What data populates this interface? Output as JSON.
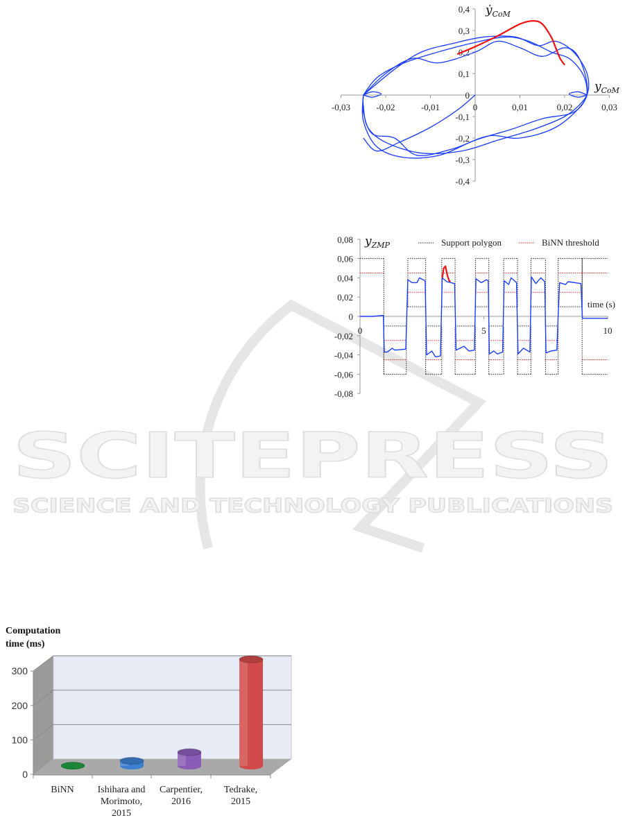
{
  "watermark": {
    "title": "SCITEPRESS",
    "subtitle": "SCIENCE AND TECHNOLOGY PUBLICATIONS"
  },
  "chart_data": [
    {
      "type": "line",
      "xlabel": {
        "base": "y",
        "sub": "CoM"
      },
      "ylabel": {
        "base": "ẏ",
        "sub": "CoM"
      },
      "xlim": [
        -0.03,
        0.03
      ],
      "ylim": [
        -0.4,
        0.4
      ],
      "xticks": [
        -0.03,
        -0.02,
        -0.01,
        0,
        0.01,
        0.02,
        0.03
      ],
      "xtick_labels": [
        "-0,03",
        "-0,02",
        "-0,01",
        "0",
        "0,01",
        "0,02",
        "0,03"
      ],
      "yticks": [
        0.4,
        0.3,
        0.2,
        0.1,
        0,
        -0.1,
        -0.2,
        -0.3,
        -0.4
      ],
      "ytick_labels": [
        "0,4",
        "0,3",
        "0,2",
        "0,1",
        "0",
        "-0,1",
        "-0,2",
        "-0,3",
        "-0,4"
      ],
      "grid": false,
      "series": [
        {
          "color": "#1a3cff",
          "points": [
            [
              0,
              0
            ],
            [
              -0.004,
              -0.07
            ],
            [
              -0.01,
              -0.15
            ],
            [
              -0.017,
              -0.22
            ],
            [
              -0.022,
              -0.26
            ],
            [
              -0.025,
              -0.2
            ]
          ]
        },
        {
          "color": "#1a3cff",
          "points": [
            [
              -0.025,
              0
            ],
            [
              -0.022,
              0.08
            ],
            [
              -0.017,
              0.14
            ],
            [
              -0.01,
              0.19
            ],
            [
              0,
              0.245
            ],
            [
              0.007,
              0.27
            ],
            [
              0.012,
              0.25
            ],
            [
              0.017,
              0.2
            ],
            [
              0.021,
              0.17
            ],
            [
              0.024,
              0.1
            ],
            [
              0.025,
              0.02
            ],
            [
              0.024,
              -0.03
            ],
            [
              0.02,
              -0.1
            ],
            [
              0.013,
              -0.16
            ],
            [
              0.005,
              -0.21
            ],
            [
              -0.003,
              -0.26
            ],
            [
              -0.012,
              -0.27
            ],
            [
              -0.02,
              -0.22
            ],
            [
              -0.024,
              -0.15
            ],
            [
              -0.025,
              -0.05
            ],
            [
              -0.025,
              0
            ]
          ]
        },
        {
          "color": "#1a3cff",
          "points": [
            [
              -0.025,
              0
            ],
            [
              -0.02,
              0.1
            ],
            [
              -0.014,
              0.17
            ],
            [
              -0.008,
              0.15
            ],
            [
              0,
              0.2
            ],
            [
              0.005,
              0.25
            ],
            [
              0.01,
              0.22
            ],
            [
              0.015,
              0.18
            ],
            [
              0.02,
              0.22
            ],
            [
              0.023,
              0.18
            ],
            [
              0.025,
              0.05
            ],
            [
              0.024,
              -0.04
            ],
            [
              0.018,
              -0.15
            ],
            [
              0.01,
              -0.2
            ],
            [
              0.003,
              -0.19
            ],
            [
              -0.005,
              -0.25
            ],
            [
              -0.013,
              -0.28
            ],
            [
              -0.018,
              -0.2
            ],
            [
              -0.023,
              -0.18
            ],
            [
              -0.025,
              -0.08
            ],
            [
              -0.025,
              0
            ]
          ]
        },
        {
          "color": "#1a3cff",
          "points": [
            [
              -0.025,
              0
            ],
            [
              -0.018,
              0.12
            ],
            [
              -0.012,
              0.2
            ],
            [
              -0.005,
              0.24
            ],
            [
              0.002,
              0.27
            ],
            [
              0.009,
              0.27
            ],
            [
              0.014,
              0.23
            ],
            [
              0.018,
              0.25
            ],
            [
              0.022,
              0.2
            ],
            [
              0.025,
              0.1
            ],
            [
              0.025,
              0
            ],
            [
              0.022,
              -0.08
            ],
            [
              0.015,
              -0.11
            ],
            [
              0.008,
              -0.16
            ],
            [
              0,
              -0.21
            ],
            [
              -0.008,
              -0.28
            ],
            [
              -0.016,
              -0.29
            ],
            [
              -0.022,
              -0.24
            ],
            [
              -0.025,
              -0.12
            ],
            [
              -0.025,
              0
            ]
          ]
        },
        {
          "color": "#1a3cff",
          "points": [
            [
              -0.025,
              0
            ],
            [
              -0.023,
              0.015
            ],
            [
              -0.021,
              0.005
            ],
            [
              -0.023,
              -0.01
            ],
            [
              -0.025,
              0
            ]
          ]
        },
        {
          "color": "#1a3cff",
          "points": [
            [
              0.025,
              0
            ],
            [
              0.023,
              0.015
            ],
            [
              0.021,
              0.005
            ],
            [
              0.023,
              -0.01
            ],
            [
              0.025,
              0
            ]
          ]
        },
        {
          "color": "#ee1111",
          "points": [
            [
              -0.004,
              0.19
            ],
            [
              0,
              0.225
            ],
            [
              0.005,
              0.275
            ],
            [
              0.01,
              0.33
            ],
            [
              0.013,
              0.345
            ],
            [
              0.015,
              0.33
            ],
            [
              0.017,
              0.27
            ],
            [
              0.018,
              0.22
            ],
            [
              0.019,
              0.17
            ],
            [
              0.02,
              0.14
            ]
          ]
        }
      ]
    },
    {
      "type": "line",
      "ylabel": {
        "base": "y",
        "sub": "ZMP"
      },
      "xlabel": "time (s)",
      "xlim": [
        0,
        10
      ],
      "ylim": [
        -0.08,
        0.08
      ],
      "xticks": [
        0,
        5,
        10
      ],
      "xtick_labels": [
        "0",
        "5",
        "10"
      ],
      "yticks": [
        0.08,
        0.06,
        0.04,
        0.02,
        0,
        -0.02,
        -0.04,
        -0.06,
        -0.08
      ],
      "ytick_labels": [
        "0,08",
        "0,06",
        "0,04",
        "0,02",
        "0",
        "-0,02",
        "-0,04",
        "-0,06",
        "-0,08"
      ],
      "legend": {
        "position": "top",
        "entries": [
          {
            "name": "Support polygon",
            "color": "#222222",
            "style": "dotted"
          },
          {
            "name": "BiNN threshold",
            "color": "#ee2222",
            "style": "dotted"
          }
        ]
      },
      "support_phases": [
        {
          "t": [
            0,
            0.96
          ],
          "lo": null,
          "hi": 0.06,
          "thr": [
            0.045
          ]
        },
        {
          "t": [
            0.96,
            1.87
          ],
          "lo": -0.06,
          "hi": -0.01,
          "thr": [
            -0.025,
            -0.045
          ]
        },
        {
          "t": [
            1.93,
            2.65
          ],
          "lo": 0.01,
          "hi": 0.06,
          "thr": [
            0.025,
            0.045
          ]
        },
        {
          "t": [
            2.65,
            3.3
          ],
          "lo": -0.06,
          "hi": -0.01,
          "thr": [
            -0.025,
            -0.045
          ]
        },
        {
          "t": [
            3.3,
            3.84
          ],
          "lo": 0.01,
          "hi": 0.06,
          "thr": [
            0.025,
            0.045
          ]
        },
        {
          "t": [
            3.84,
            4.66
          ],
          "lo": -0.06,
          "hi": -0.01,
          "thr": [
            -0.025,
            -0.045
          ]
        },
        {
          "t": [
            4.66,
            5.2
          ],
          "lo": 0.01,
          "hi": 0.06,
          "thr": [
            0.025,
            0.045
          ]
        },
        {
          "t": [
            5.2,
            5.8
          ],
          "lo": -0.06,
          "hi": -0.01,
          "thr": [
            -0.025,
            -0.045
          ]
        },
        {
          "t": [
            5.8,
            6.36
          ],
          "lo": 0.01,
          "hi": 0.06,
          "thr": [
            0.025,
            0.045
          ]
        },
        {
          "t": [
            6.36,
            6.9
          ],
          "lo": -0.06,
          "hi": -0.01,
          "thr": [
            -0.025,
            -0.045
          ]
        },
        {
          "t": [
            6.9,
            7.49
          ],
          "lo": 0.01,
          "hi": 0.06,
          "thr": [
            0.025,
            0.045
          ]
        },
        {
          "t": [
            7.49,
            8.0
          ],
          "lo": -0.06,
          "hi": -0.01,
          "thr": [
            -0.025,
            -0.045
          ]
        },
        {
          "t": [
            8.0,
            8.97
          ],
          "lo": 0.01,
          "hi": 0.06,
          "thr": [
            0.025,
            0.045
          ]
        },
        {
          "t": [
            8.97,
            10
          ],
          "lo": -0.06,
          "hi": 0.06,
          "thr": [
            0.045,
            -0.045
          ]
        }
      ],
      "series": [
        {
          "color": "#1a3cff",
          "points": [
            [
              0,
              0
            ],
            [
              0.5,
              0
            ],
            [
              0.94,
              0.001
            ],
            [
              0.98,
              -0.037
            ],
            [
              1.1,
              -0.037
            ],
            [
              1.3,
              -0.033
            ],
            [
              1.4,
              -0.035
            ],
            [
              1.85,
              -0.034
            ],
            [
              1.93,
              0.038
            ],
            [
              2.1,
              0.035
            ],
            [
              2.3,
              0.035
            ],
            [
              2.4,
              0.04
            ],
            [
              2.55,
              0.038
            ],
            [
              2.63,
              0.037
            ],
            [
              2.69,
              -0.04
            ],
            [
              2.9,
              -0.036
            ],
            [
              3.05,
              -0.042
            ],
            [
              3.25,
              -0.041
            ],
            [
              3.32,
              0.04
            ],
            [
              3.5,
              0.036
            ],
            [
              3.82,
              0.034
            ],
            [
              3.88,
              -0.035
            ],
            [
              4.2,
              -0.031
            ],
            [
              4.4,
              -0.036
            ],
            [
              4.62,
              -0.035
            ],
            [
              4.68,
              0.039
            ],
            [
              4.9,
              0.035
            ],
            [
              5.1,
              0.038
            ],
            [
              5.18,
              0.037
            ],
            [
              5.22,
              -0.039
            ],
            [
              5.4,
              -0.036
            ],
            [
              5.55,
              -0.039
            ],
            [
              5.76,
              -0.037
            ],
            [
              5.82,
              0.037
            ],
            [
              6.0,
              0.033
            ],
            [
              6.1,
              0.04
            ],
            [
              6.32,
              0.035
            ],
            [
              6.38,
              -0.039
            ],
            [
              6.6,
              -0.033
            ],
            [
              6.86,
              -0.037
            ],
            [
              6.92,
              0.041
            ],
            [
              7.1,
              0.034
            ],
            [
              7.3,
              0.04
            ],
            [
              7.46,
              0.036
            ],
            [
              7.51,
              -0.038
            ],
            [
              7.7,
              -0.036
            ],
            [
              7.95,
              -0.035
            ],
            [
              8.0,
              0.0
            ],
            [
              8.06,
              0.035
            ],
            [
              8.3,
              0.033
            ],
            [
              8.4,
              0.036
            ],
            [
              8.92,
              0.034
            ],
            [
              8.98,
              -0.002
            ],
            [
              10,
              -0.002
            ]
          ]
        },
        {
          "color": "#ee1111",
          "points": [
            [
              3.32,
              0.04
            ],
            [
              3.38,
              0.05
            ],
            [
              3.45,
              0.052
            ],
            [
              3.52,
              0.043
            ],
            [
              3.6,
              0.037
            ],
            [
              3.65,
              0.036
            ]
          ]
        }
      ]
    },
    {
      "type": "bar",
      "title": "Computation time (ms)",
      "categories": [
        "BiNN",
        "Ishihara and Morimoto, 2015",
        "Carpentier, 2016",
        "Tedrake, 2015"
      ],
      "category_lines": [
        [
          "BiNN"
        ],
        [
          "Ishihara and",
          "Morimoto,",
          "2015"
        ],
        [
          "Carpentier,",
          "2016"
        ],
        [
          "Tedrake,",
          "2015"
        ]
      ],
      "values": [
        1,
        15,
        40,
        310
      ],
      "colors": [
        "#1e9e3e",
        "#3d7fcf",
        "#8a5cb8",
        "#cf4a48"
      ],
      "ylim": [
        0,
        400
      ],
      "yticks": [
        0,
        100,
        200,
        300
      ],
      "ytick_labels": [
        "0",
        "100",
        "200",
        "300"
      ],
      "grid": true
    }
  ]
}
